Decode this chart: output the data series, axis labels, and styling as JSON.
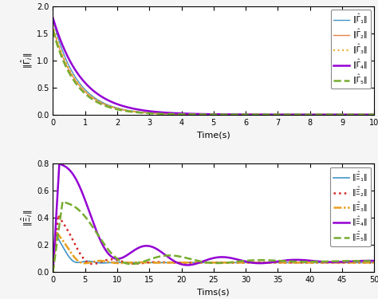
{
  "top": {
    "xlabel": "Time(s)",
    "ylabel": "$\\|\\hat{\\Gamma}_i\\|$",
    "xlim": [
      0,
      10
    ],
    "ylim": [
      0,
      2
    ],
    "yticks": [
      0,
      0.5,
      1.0,
      1.5,
      2.0
    ],
    "xticks": [
      0,
      1,
      2,
      3,
      4,
      5,
      6,
      7,
      8,
      9,
      10
    ],
    "legend_labels": [
      "$\\|\\hat{\\Gamma}_1\\|$",
      "$\\|\\hat{\\Gamma}_2\\|$",
      "$\\|\\hat{\\Gamma}_3\\|$",
      "$\\|\\hat{\\Gamma}_4\\|$",
      "$\\|\\hat{\\Gamma}_5\\|$"
    ],
    "colors": [
      "#4393c8",
      "#e8824a",
      "#edb12a",
      "#9400d3",
      "#77ac30"
    ],
    "linestyles": [
      "-",
      "-",
      ":",
      "-",
      "--"
    ],
    "linewidths": [
      1.0,
      1.0,
      1.5,
      1.8,
      1.8
    ],
    "amplitudes": [
      1.75,
      1.6,
      1.65,
      1.78,
      1.55
    ],
    "taus": [
      0.75,
      0.75,
      0.75,
      0.9,
      0.72
    ]
  },
  "bottom": {
    "xlabel": "Tims(s)",
    "ylabel": "$\\|\\hat{\\Xi}_i\\|$",
    "xlim": [
      0,
      50
    ],
    "ylim": [
      0,
      0.8
    ],
    "yticks": [
      0,
      0.2,
      0.4,
      0.6,
      0.8
    ],
    "xticks": [
      0,
      5,
      10,
      15,
      20,
      25,
      30,
      35,
      40,
      45,
      50
    ],
    "legend_labels": [
      "$\\|\\hat{\\Xi}_1\\|$",
      "$\\|\\hat{\\Xi}_2\\|$",
      "$\\|\\hat{\\Xi}_3\\|$",
      "$\\|\\hat{\\Xi}_4\\|$",
      "$\\|\\hat{\\Xi}_5\\|$"
    ],
    "colors": [
      "#4393c8",
      "#d62728",
      "#e8a020",
      "#9400d3",
      "#77ac30"
    ],
    "linestyles": [
      "-",
      ":",
      "--",
      "-",
      "--"
    ],
    "linewidths": [
      1.2,
      1.8,
      1.8,
      1.8,
      1.8
    ],
    "bg_color": "#f0f0f0"
  }
}
